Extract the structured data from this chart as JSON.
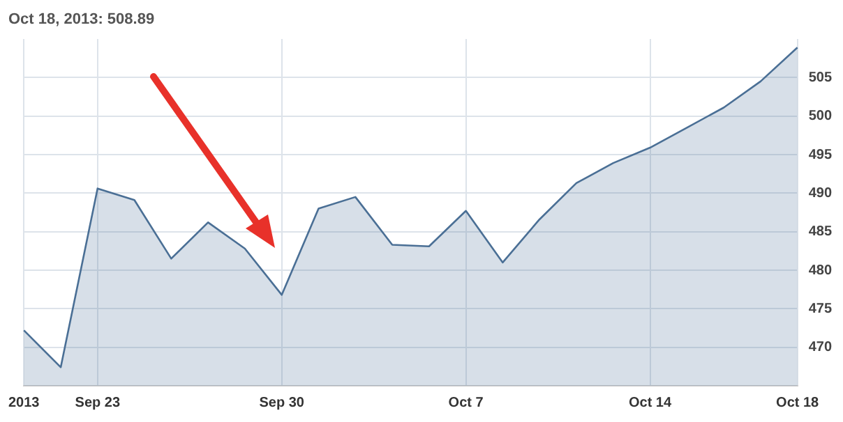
{
  "chart_data": {
    "type": "area",
    "title": "Oct 18, 2013: 508.89",
    "categories": [
      "2013",
      null,
      "Sep 23",
      null,
      null,
      null,
      null,
      "Sep 30",
      null,
      null,
      null,
      null,
      "Oct 7",
      null,
      null,
      null,
      null,
      "Oct 14",
      null,
      null,
      null,
      "Oct 18"
    ],
    "series": [
      {
        "color": "#4a6f95",
        "values": [
          472.2,
          467.4,
          490.6,
          489.1,
          481.5,
          486.2,
          482.8,
          476.8,
          488.0,
          489.5,
          483.3,
          483.1,
          487.7,
          481.0,
          486.6,
          491.3,
          493.9,
          495.9,
          498.5,
          501.1,
          504.5,
          508.89
        ]
      }
    ],
    "ylim": [
      465,
      510
    ],
    "yticks": [
      470,
      475,
      480,
      485,
      490,
      495,
      500,
      505
    ],
    "grid": true,
    "legend": false,
    "marker": "none"
  }
}
